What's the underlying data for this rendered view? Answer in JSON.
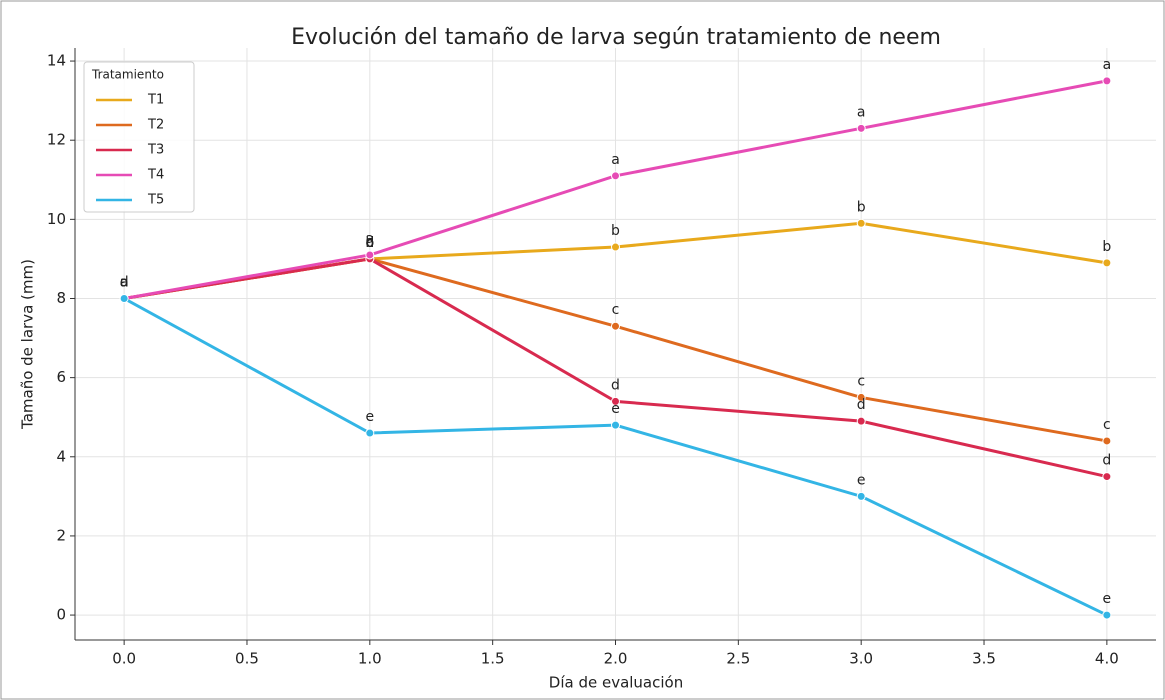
{
  "chart_data": {
    "type": "line",
    "title": "Evolución del tamaño de larva según tratamiento de neem",
    "x_label": "Día de evaluación",
    "y_label": "Tamaño de larva (mm)",
    "x": [
      0,
      1,
      2,
      3,
      4
    ],
    "series": [
      {
        "name": "T1",
        "color": "#e8a91c",
        "values": [
          8,
          9.0,
          9.3,
          9.9,
          8.9
        ],
        "labels": [
          "a",
          "b",
          "b",
          "b",
          "b"
        ]
      },
      {
        "name": "T2",
        "color": "#de6a1f",
        "values": [
          8,
          9.0,
          7.3,
          5.5,
          4.4
        ],
        "labels": [
          "a",
          "c",
          "c",
          "c",
          "c"
        ]
      },
      {
        "name": "T3",
        "color": "#d82a4f",
        "values": [
          8,
          9.0,
          5.4,
          4.9,
          3.5
        ],
        "labels": [
          "d",
          "d",
          "d",
          "d",
          "d"
        ]
      },
      {
        "name": "T4",
        "color": "#e64bb5",
        "values": [
          8,
          9.1,
          11.1,
          12.3,
          13.5
        ],
        "labels": [
          "a",
          "a",
          "a",
          "a",
          "a"
        ]
      },
      {
        "name": "T5",
        "color": "#33b5e5",
        "values": [
          8,
          4.6,
          4.8,
          3.0,
          0.0
        ],
        "labels": [
          "a",
          "e",
          "e",
          "e",
          "e"
        ]
      }
    ],
    "legend_title": "Tratamiento",
    "legend": "upper left",
    "grid": true,
    "xlim": [
      -0.2,
      4.2
    ],
    "xticks": [
      {
        "value": 0,
        "label": "0.0"
      },
      0.5,
      {
        "value": 1,
        "label": "1.0"
      },
      1.5,
      {
        "value": 2,
        "label": "2.0"
      },
      2.5,
      {
        "value": 3,
        "label": "3.0"
      },
      3.5,
      {
        "value": 4,
        "label": "4.0"
      }
    ],
    "ylim": [
      -0.63,
      14.33
    ],
    "yticks": [
      0,
      2,
      4,
      6,
      8,
      10,
      12,
      14
    ]
  }
}
